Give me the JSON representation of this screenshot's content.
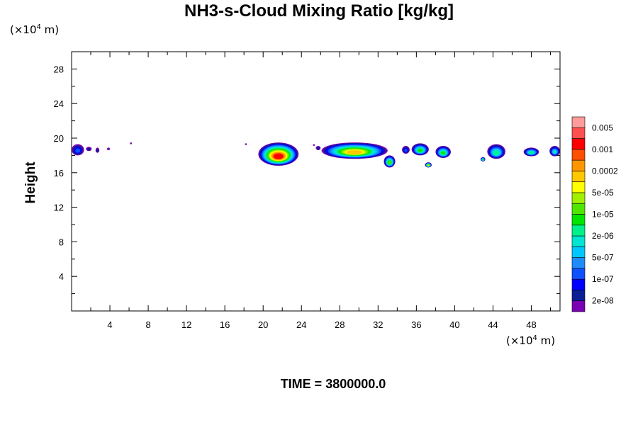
{
  "title": "NH3-s-Cloud Mixing Ratio [kg/kg]",
  "time_label": "TIME = 3800000.0",
  "y_unit": {
    "prefix": "(×10",
    "exp": "4",
    "suffix": " m)"
  },
  "x_unit": {
    "prefix": "(×10",
    "exp": "4",
    "suffix": " m)"
  },
  "chart_data": {
    "type": "heatmap",
    "title": "NH3-s-Cloud Mixing Ratio [kg/kg]",
    "xlabel": "",
    "ylabel": "Height",
    "xlim": [
      0,
      51
    ],
    "ylim": [
      0,
      30
    ],
    "xticks": [
      4,
      8,
      12,
      16,
      20,
      24,
      28,
      32,
      36,
      40,
      44,
      48
    ],
    "xtick_labels": [
      "4",
      "8",
      "12",
      "16",
      "20",
      "24",
      "28",
      "32",
      "36",
      "40",
      "44",
      "48"
    ],
    "yticks": [
      4,
      8,
      12,
      16,
      20,
      24,
      28
    ],
    "ytick_labels": [
      "4",
      "8",
      "12",
      "16",
      "20",
      "24",
      "28"
    ],
    "grid": false,
    "colorbar": {
      "colors": [
        "#7a00b4",
        "#0a1e96",
        "#0000ff",
        "#0f50ff",
        "#1e8cff",
        "#00c8ff",
        "#00e6d2",
        "#00f08c",
        "#00e600",
        "#50e600",
        "#a0f000",
        "#ffff00",
        "#ffc800",
        "#ff9600",
        "#ff5000",
        "#ff0000",
        "#ff5050",
        "#ff9b9b"
      ],
      "labels": [
        "2e-08",
        "1e-07",
        "5e-07",
        "2e-06",
        "1e-05",
        "5e-05",
        "0.0002",
        "0.001",
        "0.005"
      ]
    },
    "regions": [
      {
        "x": [
          0.0,
          1.3
        ],
        "y": [
          18.0,
          19.3
        ],
        "max_level": 3
      },
      {
        "x": [
          1.5,
          2.1
        ],
        "y": [
          18.5,
          19.0
        ],
        "max_level": 1
      },
      {
        "x": [
          2.5,
          2.9
        ],
        "y": [
          18.3,
          18.9
        ],
        "max_level": 1
      },
      {
        "x": [
          3.7,
          4.0
        ],
        "y": [
          18.6,
          18.9
        ],
        "max_level": 0
      },
      {
        "x": [
          19.5,
          23.7
        ],
        "y": [
          16.8,
          19.5
        ],
        "max_level": 15
      },
      {
        "x": [
          25.5,
          26.0
        ],
        "y": [
          18.6,
          19.1
        ],
        "max_level": 1
      },
      {
        "x": [
          26.1,
          33.0
        ],
        "y": [
          17.6,
          19.5
        ],
        "max_level": 12
      },
      {
        "x": [
          32.6,
          33.8
        ],
        "y": [
          16.6,
          18.0
        ],
        "max_level": 9
      },
      {
        "x": [
          34.5,
          35.3
        ],
        "y": [
          18.2,
          19.1
        ],
        "max_level": 3
      },
      {
        "x": [
          35.5,
          37.3
        ],
        "y": [
          18.0,
          19.4
        ],
        "max_level": 8
      },
      {
        "x": [
          36.9,
          37.6
        ],
        "y": [
          16.6,
          17.2
        ],
        "max_level": 11
      },
      {
        "x": [
          38.0,
          39.6
        ],
        "y": [
          17.7,
          19.1
        ],
        "max_level": 8
      },
      {
        "x": [
          42.7,
          43.2
        ],
        "y": [
          17.3,
          17.8
        ],
        "max_level": 8
      },
      {
        "x": [
          43.4,
          45.3
        ],
        "y": [
          17.6,
          19.3
        ],
        "max_level": 7
      },
      {
        "x": [
          47.2,
          48.8
        ],
        "y": [
          17.9,
          18.9
        ],
        "max_level": 7
      },
      {
        "x": [
          49.9,
          51.0
        ],
        "y": [
          17.9,
          19.1
        ],
        "max_level": 6
      }
    ],
    "points": [
      {
        "x": 6.2,
        "y": 19.4
      },
      {
        "x": 18.2,
        "y": 19.3
      },
      {
        "x": 25.3,
        "y": 19.2
      }
    ]
  }
}
